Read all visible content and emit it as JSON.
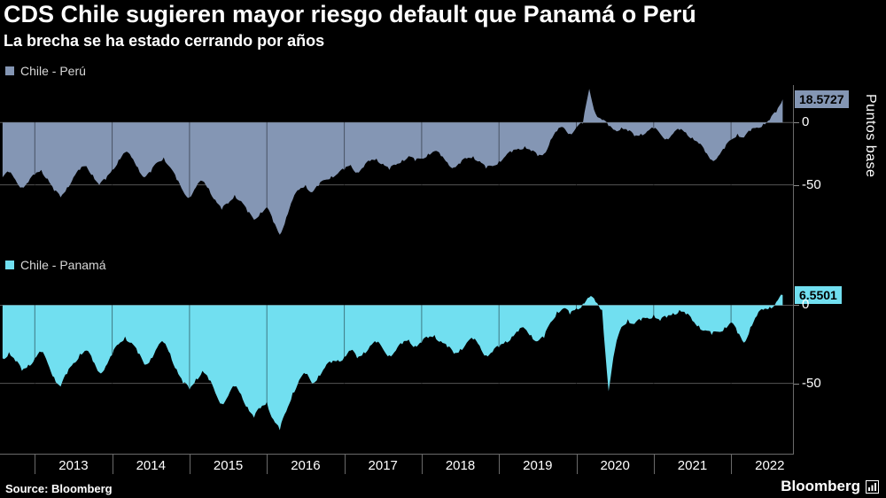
{
  "header": {
    "title": "CDS Chile sugieren mayor riesgo default que Panamá o Perú",
    "subtitle": "La brecha se ha estado cerrando por años"
  },
  "panels": [
    {
      "legend": "Chile - Perú",
      "color": "#8496b4",
      "last_value_label": "18.5727"
    },
    {
      "legend": "Chile - Panamá",
      "color": "#71dff0",
      "last_value_label": "6.5501"
    }
  ],
  "axis": {
    "y_label": "Puntos base",
    "y_ticks": [
      "0",
      "-50"
    ],
    "x_labels": [
      "2013",
      "2014",
      "2015",
      "2016",
      "2017",
      "2018",
      "2019",
      "2020",
      "2021",
      "2022"
    ]
  },
  "footer": {
    "source": "Source: Bloomberg",
    "brand": "Bloomberg"
  },
  "chart_data": [
    {
      "type": "area",
      "name": "Chile - Perú",
      "color": "#8496b4",
      "ylabel": "Puntos base",
      "x_start": 2012.5833,
      "x_step": 0.0833333,
      "x_range": [
        2012.55,
        2022.8
      ],
      "ylim": [
        -105,
        30
      ],
      "y_gridlines": [
        0,
        -50
      ],
      "x_tick_years": [
        2013,
        2014,
        2015,
        2016,
        2017,
        2018,
        2019,
        2020,
        2021,
        2022
      ],
      "last_value": 18.5727,
      "values": [
        -44,
        -40,
        -46,
        -52,
        -48,
        -42,
        -38,
        -45,
        -55,
        -60,
        -52,
        -44,
        -38,
        -35,
        -42,
        -50,
        -46,
        -38,
        -30,
        -24,
        -28,
        -36,
        -44,
        -40,
        -32,
        -28,
        -36,
        -46,
        -55,
        -60,
        -52,
        -47,
        -53,
        -62,
        -70,
        -65,
        -58,
        -63,
        -72,
        -78,
        -72,
        -68,
        -80,
        -90,
        -76,
        -62,
        -54,
        -50,
        -56,
        -51,
        -46,
        -43,
        -41,
        -38,
        -34,
        -40,
        -36,
        -31,
        -29,
        -33,
        -38,
        -34,
        -30,
        -27,
        -31,
        -29,
        -25,
        -23,
        -27,
        -32,
        -36,
        -33,
        -29,
        -27,
        -31,
        -37,
        -35,
        -31,
        -27,
        -24,
        -21,
        -19,
        -23,
        -27,
        -25,
        -14,
        -7,
        -4,
        -9,
        -4,
        -1,
        27,
        7,
        2,
        -3,
        -6,
        -4,
        -7,
        -11,
        -9,
        -7,
        -5,
        -9,
        -13,
        -9,
        -6,
        -8,
        -12,
        -17,
        -24,
        -30,
        -27,
        -21,
        -14,
        -9,
        -12,
        -7,
        -4,
        -1,
        2,
        8,
        18.5727
      ]
    },
    {
      "type": "area",
      "name": "Chile - Panamá",
      "color": "#71dff0",
      "ylabel": "Puntos base",
      "x_start": 2012.5833,
      "x_step": 0.0833333,
      "x_range": [
        2012.55,
        2022.8
      ],
      "ylim": [
        -95,
        15
      ],
      "y_gridlines": [
        0,
        -50
      ],
      "x_tick_years": [
        2013,
        2014,
        2015,
        2016,
        2017,
        2018,
        2019,
        2020,
        2021,
        2022
      ],
      "last_value": 6.5501,
      "values": [
        -34,
        -30,
        -36,
        -42,
        -38,
        -34,
        -30,
        -37,
        -46,
        -52,
        -44,
        -37,
        -31,
        -29,
        -36,
        -43,
        -39,
        -32,
        -25,
        -20,
        -24,
        -31,
        -38,
        -34,
        -27,
        -24,
        -31,
        -41,
        -50,
        -54,
        -47,
        -42,
        -48,
        -56,
        -63,
        -58,
        -52,
        -57,
        -65,
        -72,
        -66,
        -62,
        -73,
        -80,
        -68,
        -56,
        -48,
        -44,
        -50,
        -45,
        -40,
        -37,
        -35,
        -33,
        -29,
        -34,
        -30,
        -26,
        -24,
        -28,
        -32,
        -29,
        -25,
        -22,
        -26,
        -24,
        -21,
        -19,
        -23,
        -27,
        -31,
        -28,
        -24,
        -22,
        -26,
        -32,
        -30,
        -27,
        -23,
        -20,
        -17,
        -15,
        -19,
        -23,
        -21,
        -11,
        -4,
        -2,
        -6,
        -2,
        1,
        5,
        2,
        -3,
        -55,
        -28,
        -14,
        -9,
        -12,
        -10,
        -8,
        -6,
        -10,
        -8,
        -5,
        -3,
        -6,
        -10,
        -13,
        -16,
        -19,
        -17,
        -14,
        -11,
        -18,
        -24,
        -14,
        -7,
        -3,
        -1,
        2,
        6.5501
      ]
    }
  ]
}
